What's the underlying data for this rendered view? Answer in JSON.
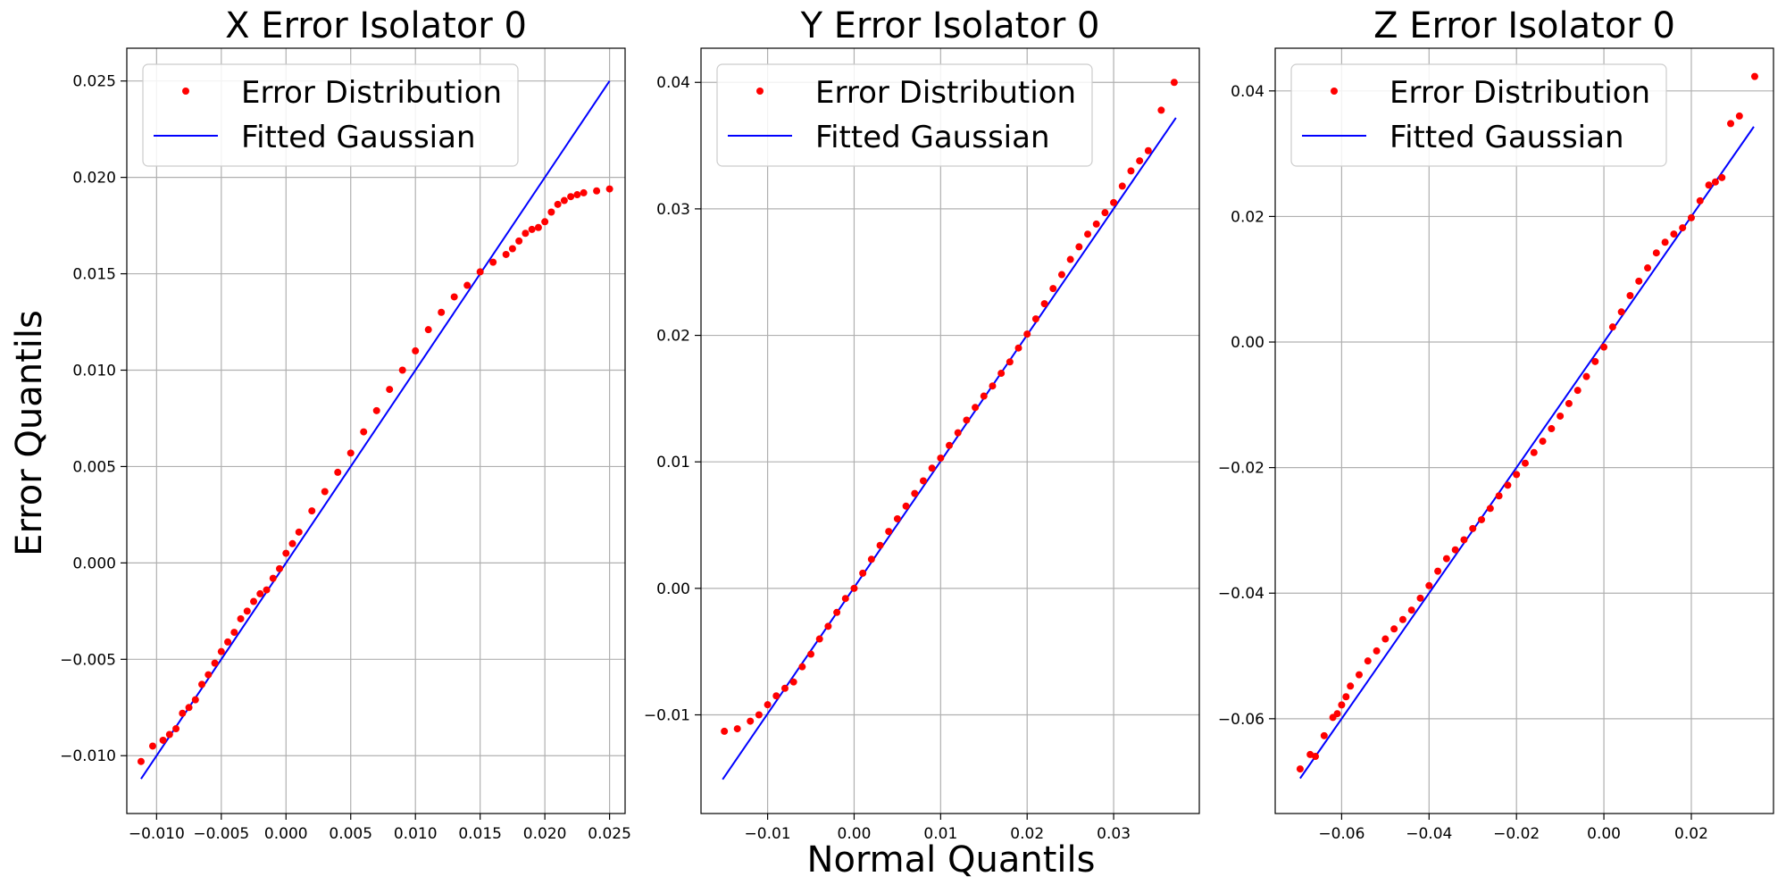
{
  "figure": {
    "ylabel": "Error Quantils",
    "xlabel": "Normal Quantils"
  },
  "legend": {
    "points_label": "Error Distribution",
    "line_label": "Fitted Gaussian"
  },
  "colors": {
    "points": "#ff0000",
    "line": "#0000ff",
    "grid": "#b0b0b0"
  },
  "chart_data": [
    {
      "type": "scatter",
      "title": "X Error Isolator 0",
      "xlim": [
        -0.0123,
        0.0262
      ],
      "ylim": [
        -0.013,
        0.0267
      ],
      "xticks": [
        -0.01,
        -0.005,
        0.0,
        0.005,
        0.01,
        0.015,
        0.02,
        0.025
      ],
      "xtick_labels": [
        "−0.010",
        "−0.005",
        "0.000",
        "0.005",
        "0.010",
        "0.015",
        "0.020",
        "0.025"
      ],
      "yticks": [
        -0.01,
        -0.005,
        0.0,
        0.005,
        0.01,
        0.015,
        0.02,
        0.025
      ],
      "ytick_labels": [
        "−0.010",
        "−0.005",
        "0.000",
        "0.005",
        "0.010",
        "0.015",
        "0.020",
        "0.025"
      ],
      "grid": true,
      "legend_position": "upper-left",
      "series": [
        {
          "name": "Error Distribution",
          "kind": "points",
          "x": [
            -0.0112,
            -0.0103,
            -0.0095,
            -0.009,
            -0.0085,
            -0.008,
            -0.0075,
            -0.007,
            -0.0065,
            -0.006,
            -0.0055,
            -0.005,
            -0.0045,
            -0.004,
            -0.0035,
            -0.003,
            -0.0025,
            -0.002,
            -0.0015,
            -0.001,
            -0.0005,
            0.0,
            0.0005,
            0.001,
            0.002,
            0.003,
            0.004,
            0.005,
            0.006,
            0.007,
            0.008,
            0.009,
            0.01,
            0.011,
            0.012,
            0.013,
            0.014,
            0.015,
            0.016,
            0.017,
            0.0175,
            0.018,
            0.0185,
            0.019,
            0.0195,
            0.02,
            0.0205,
            0.021,
            0.0215,
            0.022,
            0.0225,
            0.023,
            0.024,
            0.025
          ],
          "y": [
            -0.0103,
            -0.0095,
            -0.0092,
            -0.0089,
            -0.0086,
            -0.0078,
            -0.0075,
            -0.0071,
            -0.0063,
            -0.0058,
            -0.0052,
            -0.0046,
            -0.0041,
            -0.0036,
            -0.0029,
            -0.0025,
            -0.002,
            -0.0016,
            -0.0014,
            -0.0008,
            -0.0003,
            0.0005,
            0.001,
            0.0016,
            0.0027,
            0.0037,
            0.0047,
            0.0057,
            0.0068,
            0.0079,
            0.009,
            0.01,
            0.011,
            0.0121,
            0.013,
            0.0138,
            0.0144,
            0.0151,
            0.0156,
            0.016,
            0.0163,
            0.0167,
            0.0171,
            0.0173,
            0.0174,
            0.0177,
            0.0182,
            0.0186,
            0.0188,
            0.019,
            0.0191,
            0.0192,
            0.0193,
            0.0194
          ]
        },
        {
          "name": "Fitted Gaussian",
          "kind": "line",
          "x": [
            -0.0112,
            0.025
          ],
          "y": [
            -0.0112,
            0.025
          ]
        }
      ]
    },
    {
      "type": "scatter",
      "title": "Y Error Isolator 0",
      "xlim": [
        -0.0177,
        0.0399
      ],
      "ylim": [
        -0.0178,
        0.0427
      ],
      "xticks": [
        -0.01,
        0.0,
        0.01,
        0.02,
        0.03
      ],
      "xtick_labels": [
        "−0.01",
        "0.00",
        "0.01",
        "0.02",
        "0.03"
      ],
      "yticks": [
        -0.01,
        0.0,
        0.01,
        0.02,
        0.03,
        0.04
      ],
      "ytick_labels": [
        "−0.01",
        "0.00",
        "0.01",
        "0.02",
        "0.03",
        "0.04"
      ],
      "grid": true,
      "legend_position": "upper-left",
      "series": [
        {
          "name": "Error Distribution",
          "kind": "points",
          "x": [
            -0.015,
            -0.0135,
            -0.012,
            -0.011,
            -0.01,
            -0.009,
            -0.008,
            -0.007,
            -0.006,
            -0.005,
            -0.004,
            -0.003,
            -0.002,
            -0.001,
            0.0,
            0.001,
            0.002,
            0.003,
            0.004,
            0.005,
            0.006,
            0.007,
            0.008,
            0.009,
            0.01,
            0.011,
            0.012,
            0.013,
            0.014,
            0.015,
            0.016,
            0.017,
            0.018,
            0.019,
            0.02,
            0.021,
            0.022,
            0.023,
            0.024,
            0.025,
            0.026,
            0.027,
            0.028,
            0.029,
            0.03,
            0.031,
            0.032,
            0.033,
            0.034,
            0.0355,
            0.037
          ],
          "y": [
            -0.0113,
            -0.0111,
            -0.0105,
            -0.01,
            -0.0092,
            -0.0085,
            -0.0079,
            -0.0074,
            -0.0062,
            -0.0052,
            -0.004,
            -0.003,
            -0.0019,
            -0.0008,
            0.0,
            0.0012,
            0.0023,
            0.0034,
            0.0045,
            0.0055,
            0.0065,
            0.0075,
            0.0085,
            0.0095,
            0.0103,
            0.0113,
            0.0123,
            0.0133,
            0.0143,
            0.0152,
            0.016,
            0.017,
            0.0179,
            0.019,
            0.0201,
            0.0213,
            0.0225,
            0.0237,
            0.0248,
            0.026,
            0.027,
            0.028,
            0.0288,
            0.0297,
            0.0305,
            0.0318,
            0.033,
            0.0338,
            0.0346,
            0.0378,
            0.04
          ]
        },
        {
          "name": "Fitted Gaussian",
          "kind": "line",
          "x": [
            -0.0152,
            0.0372
          ],
          "y": [
            -0.0151,
            0.0372
          ]
        }
      ]
    },
    {
      "type": "scatter",
      "title": "Z Error Isolator 0",
      "xlim": [
        -0.0752,
        0.0388
      ],
      "ylim": [
        -0.0751,
        0.0468
      ],
      "xticks": [
        -0.06,
        -0.04,
        -0.02,
        0.0,
        0.02
      ],
      "xtick_labels": [
        "−0.06",
        "−0.04",
        "−0.02",
        "0.00",
        "0.02"
      ],
      "yticks": [
        -0.06,
        -0.04,
        -0.02,
        0.0,
        0.02,
        0.04
      ],
      "ytick_labels": [
        "−0.06",
        "−0.04",
        "−0.02",
        "0.00",
        "0.02",
        "0.04"
      ],
      "grid": true,
      "legend_position": "upper-left",
      "series": [
        {
          "name": "Error Distribution",
          "kind": "points",
          "x": [
            -0.0695,
            -0.0672,
            -0.066,
            -0.064,
            -0.062,
            -0.061,
            -0.06,
            -0.059,
            -0.058,
            -0.056,
            -0.054,
            -0.052,
            -0.05,
            -0.048,
            -0.046,
            -0.044,
            -0.042,
            -0.04,
            -0.038,
            -0.036,
            -0.034,
            -0.032,
            -0.03,
            -0.028,
            -0.026,
            -0.024,
            -0.022,
            -0.02,
            -0.018,
            -0.016,
            -0.014,
            -0.012,
            -0.01,
            -0.008,
            -0.006,
            -0.004,
            -0.002,
            0.0,
            0.002,
            0.004,
            0.006,
            0.008,
            0.01,
            0.012,
            0.014,
            0.016,
            0.018,
            0.02,
            0.022,
            0.024,
            0.0255,
            0.027,
            0.029,
            0.031,
            0.0345
          ],
          "y": [
            -0.068,
            -0.0657,
            -0.066,
            -0.0627,
            -0.0598,
            -0.0592,
            -0.0578,
            -0.0565,
            -0.0548,
            -0.053,
            -0.0508,
            -0.0492,
            -0.0473,
            -0.0457,
            -0.0442,
            -0.0427,
            -0.0408,
            -0.0388,
            -0.0365,
            -0.0345,
            -0.0331,
            -0.0315,
            -0.0297,
            -0.0283,
            -0.0265,
            -0.0245,
            -0.0228,
            -0.0211,
            -0.0193,
            -0.0176,
            -0.0158,
            -0.0138,
            -0.0118,
            -0.0098,
            -0.0077,
            -0.0055,
            -0.0031,
            -0.0008,
            0.0024,
            0.0048,
            0.0074,
            0.0097,
            0.0118,
            0.0142,
            0.0159,
            0.0172,
            0.0182,
            0.0198,
            0.0225,
            0.025,
            0.0255,
            0.0262,
            0.0348,
            0.036,
            0.0423
          ]
        },
        {
          "name": "Fitted Gaussian",
          "kind": "line",
          "x": [
            -0.0695,
            0.0343
          ],
          "y": [
            -0.0695,
            0.0343
          ]
        }
      ]
    }
  ]
}
